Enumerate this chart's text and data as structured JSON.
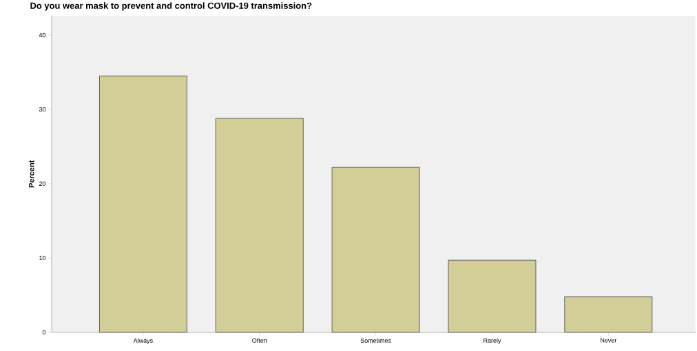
{
  "chart_data": {
    "type": "bar",
    "title": "Do you wear mask to prevent and control COVID-19 transmission?",
    "ylabel": "Percent",
    "categories": [
      "Always",
      "Often",
      "Sometimes",
      "Rarely",
      "Never"
    ],
    "values": [
      34.5,
      28.8,
      22.2,
      9.7,
      4.8
    ],
    "color": "#d3ce97",
    "ylim": [
      0,
      42.6
    ],
    "yticks": [
      0,
      10,
      20,
      30,
      40
    ]
  }
}
